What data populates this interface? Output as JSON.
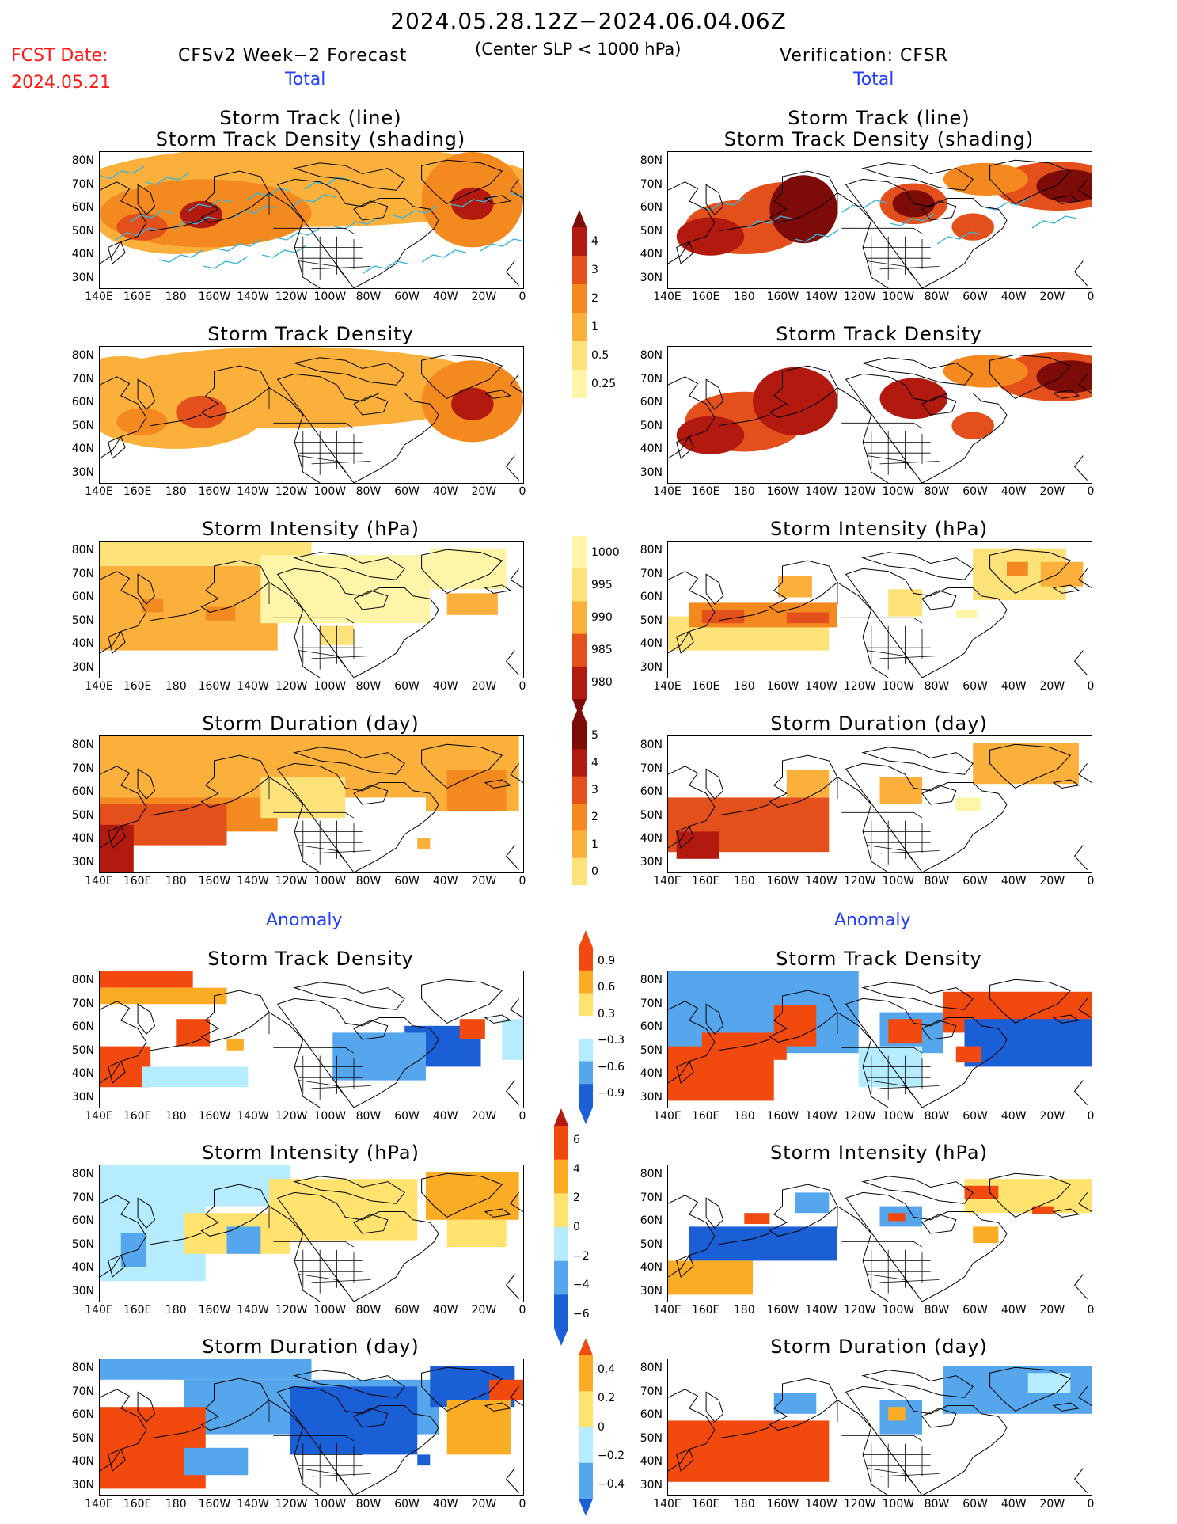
{
  "header": {
    "period": "2024.05.28.12Z−2024.06.04.06Z",
    "criterion": "(Center SLP < 1000 hPa)",
    "fcst_label": "FCST Date:",
    "fcst_date": "2024.05.21",
    "left_model": "CFSv2 Week−2 Forecast",
    "right_model": "Verification: CFSR",
    "total_left": "Total",
    "total_right": "Total",
    "anomaly_left": "Anomaly",
    "anomaly_right": "Anomaly"
  },
  "panel_titles": {
    "track_line": "Storm Track (line)",
    "track_shading": "Storm Track Density (shading)",
    "density": "Storm Track Density",
    "intensity": "Storm Intensity (hPa)",
    "duration": "Storm Duration (day)"
  },
  "axes": {
    "lat_labels": [
      "80N",
      "70N",
      "60N",
      "50N",
      "40N",
      "30N"
    ],
    "lon_labels": [
      "140E",
      "160E",
      "180",
      "160W",
      "140W",
      "120W",
      "100W",
      "80W",
      "60W",
      "40W",
      "20W",
      "0"
    ]
  },
  "colorbars": {
    "density_total": [
      "4",
      "3",
      "2",
      "1",
      "0.5",
      "0.25"
    ],
    "intensity_total": [
      "1000",
      "995",
      "990",
      "985",
      "980"
    ],
    "duration_total": [
      "5",
      "4",
      "3",
      "2",
      "1",
      "0"
    ],
    "density_anom": [
      "0.9",
      "0.6",
      "0.3",
      "−0.3",
      "−0.6",
      "−0.9"
    ],
    "intensity_anom": [
      "6",
      "4",
      "2",
      "0",
      "−2",
      "−4",
      "−6"
    ],
    "duration_anom": [
      "0.4",
      "0.2",
      "0",
      "−0.2",
      "−0.4"
    ]
  },
  "colors": {
    "total_scale": [
      "#fff5a8",
      "#fde27a",
      "#fbb03b",
      "#f48a1f",
      "#e4501c",
      "#b21a0f",
      "#7d0b07"
    ],
    "anom_warm": [
      "#ffe36e",
      "#fbac25",
      "#f2490f"
    ],
    "anom_cold": [
      "#b6ecff",
      "#56a6ee",
      "#1b5fd6"
    ],
    "track_line": "#3cb5d8"
  }
}
